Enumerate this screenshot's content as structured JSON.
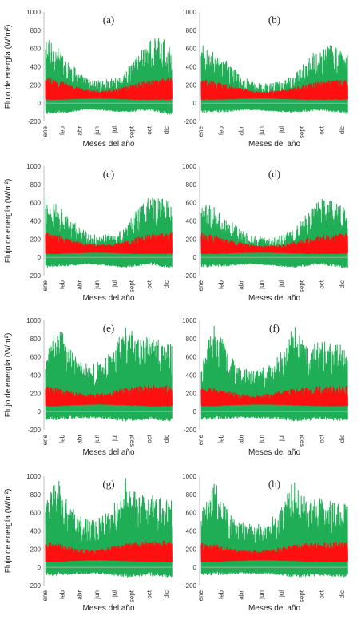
{
  "colors": {
    "green": "#1fae55",
    "red": "#ff1010",
    "axis": "#bfbfbf",
    "text": "#222222"
  },
  "chart_data": [
    {
      "type": "line",
      "panel_label": "(a)",
      "xlabel": "Meses del año",
      "ylabel": "Flujo de energía (W/m²)",
      "ylim": [
        -200,
        1000
      ],
      "yticks": [
        -200,
        0,
        200,
        400,
        600,
        800,
        1000
      ],
      "x_tick_labels": [
        "ene",
        "feb",
        "abr",
        "jun",
        "jul",
        "sept",
        "oct",
        "dic"
      ],
      "grid": false,
      "series": [
        {
          "color": "#1fae55",
          "monthly_max": [
            730,
            620,
            480,
            330,
            260,
            250,
            280,
            360,
            560,
            700,
            720,
            650
          ],
          "monthly_min": [
            -120,
            -110,
            -100,
            -80,
            -70,
            -80,
            -90,
            -100,
            -90,
            -80,
            -110,
            -130
          ]
        },
        {
          "color": "#ff1010",
          "monthly_max": [
            290,
            250,
            210,
            170,
            140,
            135,
            150,
            180,
            220,
            250,
            270,
            285
          ],
          "monthly_min": [
            40,
            40,
            45,
            50,
            55,
            55,
            50,
            45,
            40,
            40,
            40,
            40
          ]
        }
      ]
    },
    {
      "type": "line",
      "panel_label": "(b)",
      "xlabel": "Meses del año",
      "ylabel": "",
      "ylim": [
        -200,
        1000
      ],
      "yticks": [
        -200,
        0,
        200,
        400,
        600,
        800,
        1000
      ],
      "x_tick_labels": [
        "ene",
        "feb",
        "abr",
        "jun",
        "jul",
        "sept",
        "oct",
        "dic"
      ],
      "grid": false,
      "series": [
        {
          "color": "#1fae55",
          "monthly_max": [
            640,
            580,
            450,
            310,
            230,
            220,
            240,
            320,
            500,
            620,
            650,
            560
          ],
          "monthly_min": [
            -110,
            -100,
            -95,
            -80,
            -75,
            -85,
            -95,
            -100,
            -90,
            -80,
            -100,
            -120
          ]
        },
        {
          "color": "#ff1010",
          "monthly_max": [
            270,
            240,
            200,
            160,
            130,
            125,
            140,
            170,
            210,
            240,
            255,
            265
          ],
          "monthly_min": [
            40,
            40,
            45,
            50,
            55,
            55,
            50,
            45,
            40,
            40,
            40,
            40
          ]
        }
      ]
    },
    {
      "type": "line",
      "panel_label": "(c)",
      "xlabel": "Meses del año",
      "ylabel": "Flujo de energía (W/m²)",
      "ylim": [
        -200,
        1000
      ],
      "yticks": [
        -200,
        0,
        200,
        400,
        600,
        800,
        1000
      ],
      "x_tick_labels": [
        "ene",
        "feb",
        "abr",
        "jun",
        "jul",
        "sept",
        "oct",
        "dic"
      ],
      "grid": false,
      "series": [
        {
          "color": "#1fae55",
          "monthly_max": [
            660,
            600,
            460,
            320,
            250,
            240,
            270,
            350,
            560,
            690,
            650,
            600
          ],
          "monthly_min": [
            -110,
            -100,
            -95,
            -80,
            -75,
            -85,
            -100,
            -110,
            -95,
            -80,
            -100,
            -120
          ]
        },
        {
          "color": "#ff1010",
          "monthly_max": [
            285,
            250,
            205,
            165,
            140,
            135,
            150,
            180,
            220,
            250,
            270,
            280
          ],
          "monthly_min": [
            40,
            40,
            45,
            50,
            55,
            55,
            50,
            45,
            40,
            40,
            40,
            40
          ]
        }
      ]
    },
    {
      "type": "line",
      "panel_label": "(d)",
      "xlabel": "Meses del año",
      "ylabel": "",
      "ylim": [
        -200,
        1000
      ],
      "yticks": [
        -200,
        0,
        200,
        400,
        600,
        800,
        1000
      ],
      "x_tick_labels": [
        "ene",
        "feb",
        "abr",
        "jun",
        "jul",
        "sept",
        "oct",
        "dic"
      ],
      "grid": false,
      "series": [
        {
          "color": "#1fae55",
          "monthly_max": [
            600,
            560,
            430,
            300,
            230,
            220,
            240,
            320,
            500,
            640,
            620,
            560
          ],
          "monthly_min": [
            -110,
            -100,
            -95,
            -80,
            -75,
            -85,
            -100,
            -110,
            -95,
            -80,
            -100,
            -120
          ]
        },
        {
          "color": "#ff1010",
          "monthly_max": [
            270,
            240,
            200,
            160,
            130,
            125,
            140,
            170,
            210,
            240,
            255,
            265
          ],
          "monthly_min": [
            40,
            40,
            45,
            50,
            55,
            55,
            50,
            45,
            40,
            40,
            40,
            40
          ]
        }
      ]
    },
    {
      "type": "line",
      "panel_label": "(e)",
      "xlabel": "Meses del año",
      "ylabel": "Flujo de energía (W/m²)",
      "ylim": [
        -200,
        1000
      ],
      "yticks": [
        -200,
        0,
        200,
        400,
        600,
        800,
        1000
      ],
      "x_tick_labels": [
        "ene",
        "feb",
        "abr",
        "jun",
        "jul",
        "sept",
        "oct",
        "dic"
      ],
      "grid": false,
      "series": [
        {
          "color": "#1fae55",
          "monthly_max": [
            560,
            1000,
            720,
            560,
            520,
            560,
            720,
            1000,
            800,
            820,
            780,
            760
          ],
          "monthly_min": [
            -90,
            -90,
            -80,
            -70,
            -70,
            -75,
            -90,
            -110,
            -100,
            -90,
            -100,
            -110
          ]
        },
        {
          "color": "#ff1010",
          "monthly_max": [
            280,
            260,
            230,
            200,
            190,
            200,
            230,
            260,
            280,
            285,
            290,
            290
          ],
          "monthly_min": [
            60,
            60,
            70,
            75,
            80,
            80,
            75,
            70,
            65,
            60,
            60,
            60
          ]
        }
      ]
    },
    {
      "type": "line",
      "panel_label": "(f)",
      "xlabel": "Meses del año",
      "ylabel": "",
      "ylim": [
        -200,
        1000
      ],
      "yticks": [
        -200,
        0,
        200,
        400,
        600,
        800,
        1000
      ],
      "x_tick_labels": [
        "ene",
        "feb",
        "abr",
        "jun",
        "jul",
        "sept",
        "oct",
        "dic"
      ],
      "grid": false,
      "series": [
        {
          "color": "#1fae55",
          "monthly_max": [
            520,
            1000,
            680,
            500,
            460,
            500,
            660,
            1000,
            760,
            780,
            740,
            720
          ],
          "monthly_min": [
            -90,
            -90,
            -80,
            -70,
            -70,
            -75,
            -90,
            -110,
            -100,
            -90,
            -100,
            -110
          ]
        },
        {
          "color": "#ff1010",
          "monthly_max": [
            270,
            250,
            220,
            190,
            180,
            190,
            220,
            250,
            270,
            275,
            280,
            280
          ],
          "monthly_min": [
            60,
            60,
            70,
            75,
            80,
            80,
            75,
            70,
            65,
            60,
            60,
            60
          ]
        }
      ]
    },
    {
      "type": "line",
      "panel_label": "(g)",
      "xlabel": "Meses del año",
      "ylabel": "Flujo de energía (W/m²)",
      "ylim": [
        -200,
        1000
      ],
      "yticks": [
        -200,
        0,
        200,
        400,
        600,
        800,
        1000
      ],
      "x_tick_labels": [
        "ene",
        "feb",
        "abr",
        "jun",
        "jul",
        "sept",
        "oct",
        "dic"
      ],
      "grid": false,
      "series": [
        {
          "color": "#1fae55",
          "monthly_max": [
            720,
            1000,
            700,
            560,
            520,
            580,
            720,
            1000,
            780,
            800,
            760,
            740
          ],
          "monthly_min": [
            -90,
            -90,
            -80,
            -70,
            -70,
            -75,
            -90,
            -110,
            -100,
            -90,
            -100,
            -110
          ]
        },
        {
          "color": "#ff1010",
          "monthly_max": [
            280,
            260,
            230,
            200,
            190,
            200,
            230,
            260,
            280,
            285,
            290,
            290
          ],
          "monthly_min": [
            60,
            60,
            70,
            75,
            80,
            80,
            75,
            70,
            65,
            60,
            60,
            60
          ]
        }
      ]
    },
    {
      "type": "line",
      "panel_label": "(h)",
      "xlabel": "Meses del año",
      "ylabel": "",
      "ylim": [
        -200,
        1000
      ],
      "yticks": [
        -200,
        0,
        200,
        400,
        600,
        800,
        1000
      ],
      "x_tick_labels": [
        "ene",
        "feb",
        "abr",
        "jun",
        "jul",
        "sept",
        "oct",
        "dic"
      ],
      "grid": false,
      "series": [
        {
          "color": "#1fae55",
          "monthly_max": [
            600,
            1000,
            640,
            500,
            460,
            500,
            660,
            980,
            740,
            760,
            720,
            700
          ],
          "monthly_min": [
            -90,
            -90,
            -80,
            -70,
            -70,
            -75,
            -90,
            -110,
            -100,
            -90,
            -100,
            -110
          ]
        },
        {
          "color": "#ff1010",
          "monthly_max": [
            270,
            250,
            220,
            190,
            180,
            190,
            220,
            250,
            270,
            275,
            280,
            280
          ],
          "monthly_min": [
            60,
            60,
            70,
            75,
            80,
            80,
            75,
            70,
            65,
            60,
            60,
            60
          ]
        }
      ]
    }
  ]
}
